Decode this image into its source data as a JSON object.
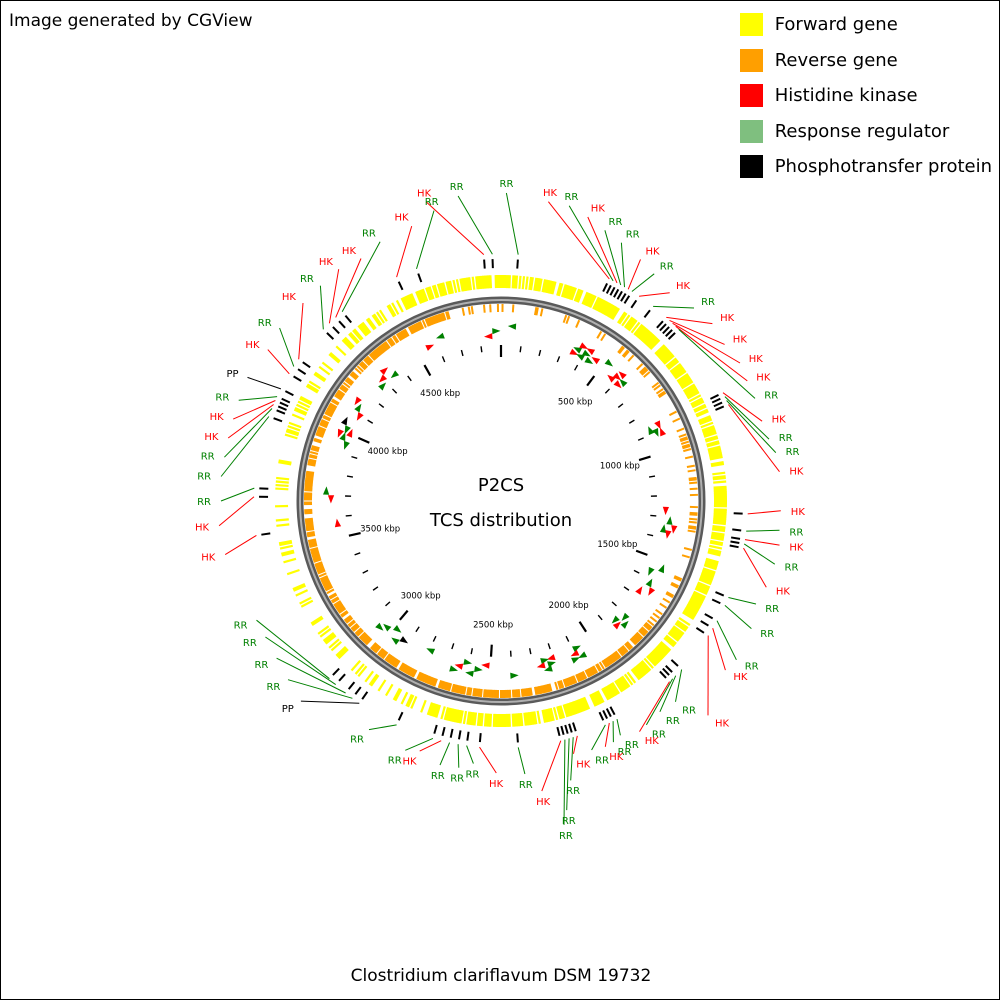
{
  "credit": "Image generated by CGView",
  "legend": [
    {
      "label": "Forward gene",
      "color": "#ffff00"
    },
    {
      "label": "Reverse gene",
      "color": "#ff9f00"
    },
    {
      "label": "Histidine kinase",
      "color": "#ff0000"
    },
    {
      "label": "Response regulator",
      "color": "#7fbf7f"
    },
    {
      "label": "Phosphotransfer protein",
      "color": "#000000"
    }
  ],
  "map": {
    "title_line1": "P2CS",
    "title_line2": "TCS distribution",
    "organism": "Clostridium clariflavum DSM 19732",
    "genome_size_kbp": 4900,
    "tick_labels": [
      "500 kbp",
      "1000 kbp",
      "1500 kbp",
      "2000 kbp",
      "2500 kbp",
      "3000 kbp",
      "3500 kbp",
      "4000 kbp",
      "4500 kbp"
    ],
    "colors": {
      "hk": "#ff0000",
      "rr": "#008000",
      "pp": "#000000",
      "hk_text": "#ff0000",
      "rr_text": "#008000",
      "forward": "#ffff00",
      "reverse": "#ff9f00",
      "backbone": "#808080"
    },
    "features": [
      {
        "type": "HK",
        "label_angle": -14,
        "label_r": 318,
        "feature_angle": -4
      },
      {
        "type": "RR",
        "label_angle": -8,
        "label_r": 318,
        "feature_angle": -2
      },
      {
        "type": "RR",
        "label_angle": 1,
        "label_r": 318,
        "feature_angle": 4
      },
      {
        "type": "HK",
        "label_angle": 9,
        "label_r": 313,
        "feature_angle": 26
      },
      {
        "type": "RR",
        "label_angle": 13,
        "label_r": 313,
        "feature_angle": 27
      },
      {
        "type": "HK",
        "label_angle": 17,
        "label_r": 307,
        "feature_angle": 28
      },
      {
        "type": "RR",
        "label_angle": 21,
        "label_r": 300,
        "feature_angle": 29
      },
      {
        "type": "RR",
        "label_angle": 25,
        "label_r": 295,
        "feature_angle": 30
      },
      {
        "type": "HK",
        "label_angle": 30,
        "label_r": 289,
        "feature_angle": 31
      },
      {
        "type": "RR",
        "label_angle": 34,
        "label_r": 284,
        "feature_angle": 32
      },
      {
        "type": "HK",
        "label_angle": 39,
        "label_r": 278,
        "feature_angle": 34
      },
      {
        "type": "RR",
        "label_angle": 45,
        "label_r": 283,
        "feature_angle": 38
      },
      {
        "type": "HK",
        "label_angle": 50,
        "label_r": 286,
        "feature_angle": 42
      },
      {
        "type": "HK",
        "label_angle": 55,
        "label_r": 283,
        "feature_angle": 43
      },
      {
        "type": "HK",
        "label_angle": 60,
        "label_r": 286,
        "feature_angle": 44
      },
      {
        "type": "HK",
        "label_angle": 64,
        "label_r": 284,
        "feature_angle": 45
      },
      {
        "type": "RR",
        "label_angle": 68,
        "label_r": 284,
        "feature_angle": 46
      },
      {
        "type": "HK",
        "label_angle": 73,
        "label_r": 283,
        "feature_angle": 64
      },
      {
        "type": "RR",
        "label_angle": 77,
        "label_r": 285,
        "feature_angle": 65
      },
      {
        "type": "RR",
        "label_angle": 80,
        "label_r": 289,
        "feature_angle": 66
      },
      {
        "type": "HK",
        "label_angle": 84,
        "label_r": 290,
        "feature_angle": 67
      },
      {
        "type": "HK",
        "label_angle": 92,
        "label_r": 290,
        "feature_angle": 93
      },
      {
        "type": "RR",
        "label_angle": 96,
        "label_r": 290,
        "feature_angle": 97
      },
      {
        "type": "HK",
        "label_angle": 99,
        "label_r": 292,
        "feature_angle": 99
      },
      {
        "type": "RR",
        "label_angle": 103,
        "label_r": 291,
        "feature_angle": 100
      },
      {
        "type": "HK",
        "label_angle": 108,
        "label_r": 289,
        "feature_angle": 101
      },
      {
        "type": "RR",
        "label_angle": 112,
        "label_r": 285,
        "feature_angle": 113
      },
      {
        "type": "RR",
        "label_angle": 117,
        "label_r": 291,
        "feature_angle": 115
      },
      {
        "type": "RR",
        "label_angle": 124,
        "label_r": 294,
        "feature_angle": 119
      },
      {
        "type": "HK",
        "label_angle": 127,
        "label_r": 291,
        "feature_angle": 121
      },
      {
        "type": "HK",
        "label_angle": 136,
        "label_r": 308,
        "feature_angle": 123
      },
      {
        "type": "RR",
        "label_angle": 139,
        "label_r": 276,
        "feature_angle": 133
      },
      {
        "type": "RR",
        "label_angle": 143,
        "label_r": 274,
        "feature_angle": 135
      },
      {
        "type": "RR",
        "label_angle": 147,
        "label_r": 277,
        "feature_angle": 136
      },
      {
        "type": "HK",
        "label_angle": 149,
        "label_r": 279,
        "feature_angle": 137
      },
      {
        "type": "RR",
        "label_angle": 153,
        "label_r": 273,
        "feature_angle": 152
      },
      {
        "type": "RR",
        "label_angle": 155,
        "label_r": 276,
        "feature_angle": 153
      },
      {
        "type": "HK",
        "label_angle": 157,
        "label_r": 277,
        "feature_angle": 154
      },
      {
        "type": "RR",
        "label_angle": 160,
        "label_r": 275,
        "feature_angle": 155
      },
      {
        "type": "HK",
        "label_angle": 164,
        "label_r": 273,
        "feature_angle": 162
      },
      {
        "type": "RR",
        "label_angle": 166,
        "label_r": 298,
        "feature_angle": 163
      },
      {
        "type": "RR",
        "label_angle": 168,
        "label_r": 326,
        "feature_angle": 164
      },
      {
        "type": "RR",
        "label_angle": 169,
        "label_r": 340,
        "feature_angle": 165
      },
      {
        "type": "HK",
        "label_angle": 172,
        "label_r": 303,
        "feature_angle": 166
      },
      {
        "type": "RR",
        "label_angle": 175,
        "label_r": 284,
        "feature_angle": 176
      },
      {
        "type": "HK",
        "label_angle": 181,
        "label_r": 282,
        "feature_angle": 185
      },
      {
        "type": "RR",
        "label_angle": 186,
        "label_r": 274,
        "feature_angle": 188
      },
      {
        "type": "RR",
        "label_angle": 189,
        "label_r": 280,
        "feature_angle": 190
      },
      {
        "type": "RR",
        "label_angle": 193,
        "label_r": 281,
        "feature_angle": 192
      },
      {
        "type": "HK",
        "label_angle": 198,
        "label_r": 273,
        "feature_angle": 194
      },
      {
        "type": "RR",
        "label_angle": 201,
        "label_r": 277,
        "feature_angle": 196
      },
      {
        "type": "RR",
        "label_angle": 210,
        "label_r": 274,
        "feature_angle": 205
      },
      {
        "type": "PP",
        "label_angle": 225,
        "label_r": 293,
        "feature_angle": 215
      },
      {
        "type": "RR",
        "label_angle": 230,
        "label_r": 288,
        "feature_angle": 217
      },
      {
        "type": "RR",
        "label_angle": 235,
        "label_r": 284,
        "feature_angle": 219
      },
      {
        "type": "RR",
        "label_angle": 240,
        "label_r": 282,
        "feature_angle": 222
      },
      {
        "type": "RR",
        "label_angle": 244,
        "label_r": 282,
        "feature_angle": 224
      },
      {
        "type": "HK",
        "label_angle": 259,
        "label_r": 291,
        "feature_angle": 262
      },
      {
        "type": "HK",
        "label_angle": 265,
        "label_r": 293,
        "feature_angle": 271
      },
      {
        "type": "RR",
        "label_angle": 270,
        "label_r": 290,
        "feature_angle": 273
      },
      {
        "type": "RR",
        "label_angle": 275,
        "label_r": 291,
        "feature_angle": 290
      },
      {
        "type": "RR",
        "label_angle": 279,
        "label_r": 290,
        "feature_angle": 292
      },
      {
        "type": "HK",
        "label_angle": 283,
        "label_r": 290,
        "feature_angle": 293
      },
      {
        "type": "HK",
        "label_angle": 287,
        "label_r": 290,
        "feature_angle": 294
      },
      {
        "type": "RR",
        "label_angle": 291,
        "label_r": 291,
        "feature_angle": 295
      },
      {
        "type": "PP",
        "label_angle": 296,
        "label_r": 292,
        "feature_angle": 297
      },
      {
        "type": "HK",
        "label_angle": 303,
        "label_r": 288,
        "feature_angle": 301
      },
      {
        "type": "RR",
        "label_angle": 308,
        "label_r": 291,
        "feature_angle": 303
      },
      {
        "type": "HK",
        "label_angle": 315,
        "label_r": 290,
        "feature_angle": 305
      },
      {
        "type": "RR",
        "label_angle": 320,
        "label_r": 291,
        "feature_angle": 314
      },
      {
        "type": "HK",
        "label_angle": 325,
        "label_r": 293,
        "feature_angle": 316
      },
      {
        "type": "HK",
        "label_angle": 330,
        "label_r": 290,
        "feature_angle": 318
      },
      {
        "type": "RR",
        "label_angle": 335,
        "label_r": 296,
        "feature_angle": 320
      },
      {
        "type": "HK",
        "label_angle": 342,
        "label_r": 299,
        "feature_angle": 335
      },
      {
        "type": "RR",
        "label_angle": 347,
        "label_r": 308,
        "feature_angle": 340
      }
    ]
  }
}
